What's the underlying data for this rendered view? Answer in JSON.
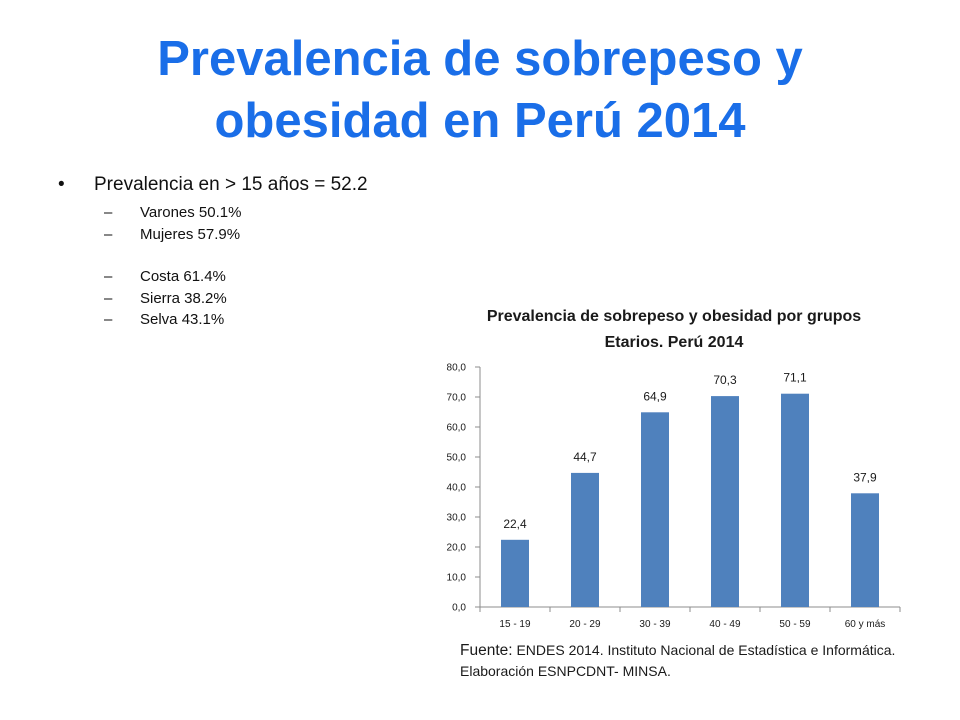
{
  "slide": {
    "title_line1": "Prevalencia de sobrepeso y",
    "title_line2": "obesidad en Perú 2014"
  },
  "bullets": {
    "main": "Prevalencia en > 15 años = 52.2",
    "main_marker": "•",
    "sub_marker": "–",
    "sub_group1": [
      "Varones 50.1%",
      "Mujeres 57.9%"
    ],
    "sub_group2": [
      "Costa 61.4%",
      "Sierra 38.2%",
      "Selva 43.1%"
    ]
  },
  "source": {
    "label": "Fuente:",
    "text": "ENDES 2014. Instituto Nacional de Estadística e Informática. Elaboración ESNPCDNT- MINSA."
  },
  "chart_data": {
    "type": "bar",
    "title_line1": "Prevalencia de sobrepeso y obesidad por grupos",
    "title_line2": "Etarios. Perú 2014",
    "categories": [
      "15 - 19",
      "20 - 29",
      "30 - 39",
      "40 - 49",
      "50 - 59",
      "60 y más"
    ],
    "values": [
      22.4,
      44.7,
      64.9,
      70.3,
      71.1,
      37.9
    ],
    "data_labels": [
      "22,4",
      "44,7",
      "64,9",
      "70,3",
      "71,1",
      "37,9"
    ],
    "y_ticks": [
      0,
      10,
      20,
      30,
      40,
      50,
      60,
      70,
      80
    ],
    "y_tick_labels": [
      "0,0",
      "10,0",
      "20,0",
      "30,0",
      "40,0",
      "50,0",
      "60,0",
      "70,0",
      "80,0"
    ],
    "ylim": [
      0,
      80
    ],
    "xlabel": "",
    "ylabel": "",
    "grid": false,
    "legend": "none",
    "bar_color": "#4f81bd"
  }
}
